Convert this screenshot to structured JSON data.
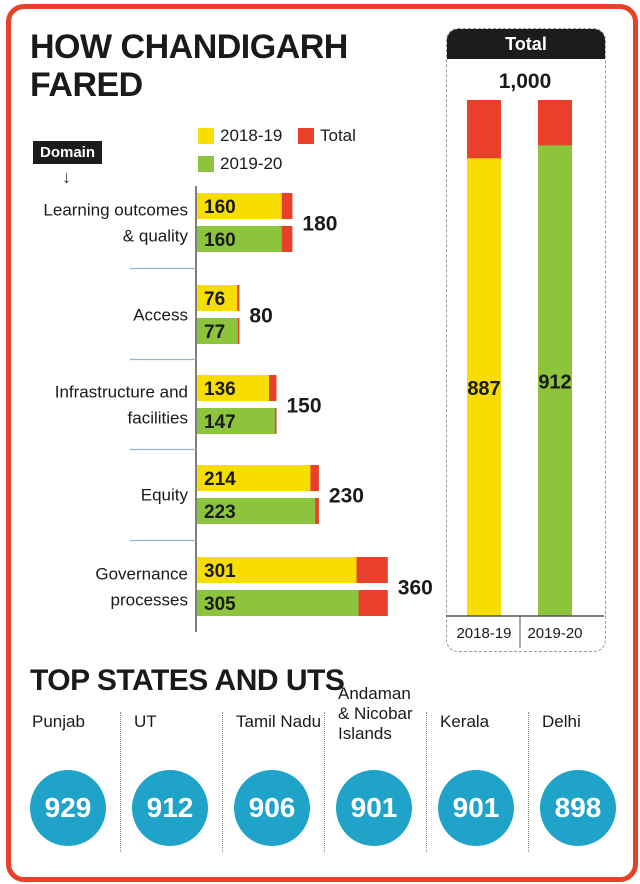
{
  "title": "HOW CHANDIGARH FARED",
  "domain_label": "Domain",
  "domain_arrow": "↓",
  "legend": {
    "y2018": "2018-19",
    "y2019": "2019-20",
    "total": "Total"
  },
  "colors": {
    "yellow": "#f7dd00",
    "green": "#8cc43c",
    "red": "#e8402b",
    "circle": "#1fa3c8"
  },
  "chart_data": [
    {
      "type": "bar",
      "orientation": "horizontal",
      "categories": [
        [
          "Learning outcomes",
          "& quality"
        ],
        [
          "Access"
        ],
        [
          "Infrastructure and",
          "facilities"
        ],
        [
          "Equity"
        ],
        [
          "Governance",
          "processes"
        ]
      ],
      "series": [
        {
          "name": "2018-19",
          "values": [
            160,
            76,
            136,
            214,
            301
          ]
        },
        {
          "name": "2019-20",
          "values": [
            160,
            77,
            147,
            223,
            305
          ]
        }
      ],
      "totals": [
        180,
        80,
        150,
        230,
        360
      ],
      "totals_name": "Total",
      "stacked_remainder_color": "red"
    },
    {
      "type": "bar",
      "title": "Total",
      "max_label": "1,000",
      "max": 1000,
      "categories": [
        "2018-19",
        "2019-20"
      ],
      "values": [
        887,
        912
      ]
    }
  ],
  "top_states": {
    "title": "TOP STATES AND UTS",
    "items": [
      {
        "name": "Punjab",
        "score": "929"
      },
      {
        "name": "UT",
        "score": "912"
      },
      {
        "name": "Tamil Nadu",
        "score": "906"
      },
      {
        "name": "Andaman & Nicobar Islands",
        "score": "901"
      },
      {
        "name": "Kerala",
        "score": "901"
      },
      {
        "name": "Delhi",
        "score": "898"
      }
    ]
  }
}
